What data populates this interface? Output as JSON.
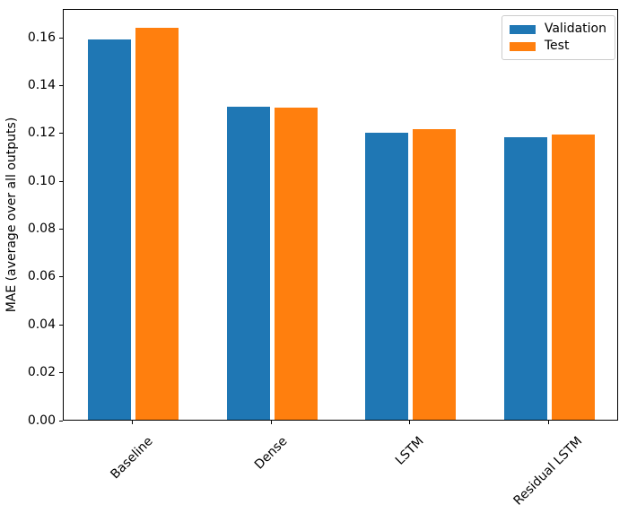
{
  "figure": {
    "type": "matplotlib-bar-chart"
  },
  "chart_data": {
    "type": "bar",
    "title": "",
    "xlabel": "",
    "ylabel": "MAE (average over all outputs)",
    "categories": [
      "Baseline",
      "Dense",
      "LSTM",
      "Residual LSTM"
    ],
    "series": [
      {
        "name": "Validation",
        "color": "#1f77b4",
        "values": [
          0.159,
          0.1307,
          0.12,
          0.1182
        ]
      },
      {
        "name": "Test",
        "color": "#ff7f0e",
        "values": [
          0.1636,
          0.1306,
          0.1215,
          0.1193
        ]
      }
    ],
    "ylim": [
      0,
      0.172
    ],
    "yticks": [
      0.0,
      0.02,
      0.04,
      0.06,
      0.08,
      0.1,
      0.12,
      0.14,
      0.16
    ],
    "ytick_labels": [
      "0.00",
      "0.02",
      "0.04",
      "0.06",
      "0.08",
      "0.10",
      "0.12",
      "0.14",
      "0.16"
    ],
    "xtick_rotation": 45,
    "grid": false,
    "legend": {
      "position": "upper right",
      "entries": [
        "Validation",
        "Test"
      ]
    }
  }
}
